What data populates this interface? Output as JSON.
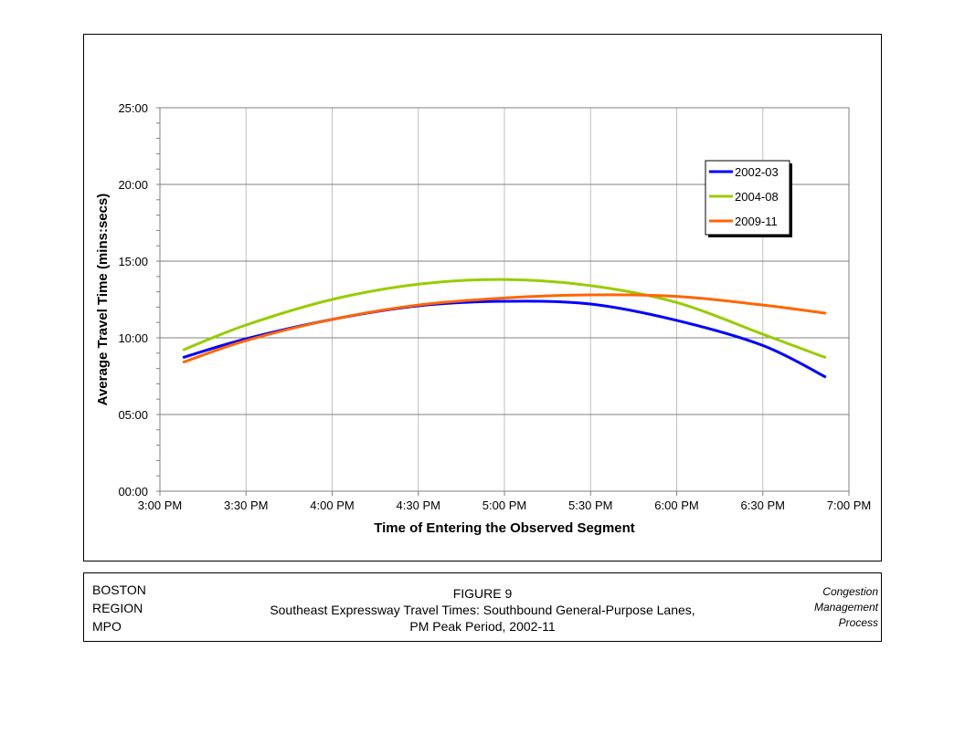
{
  "chart_data": {
    "type": "line",
    "xlabel": "Time of Entering the Observed Segment",
    "ylabel": "Average Travel Time (mins:secs)",
    "xlim": [
      "3:00 PM",
      "7:00 PM"
    ],
    "ylim": [
      "00:00",
      "25:00"
    ],
    "x_ticks": [
      "3:00 PM",
      "3:30 PM",
      "4:00 PM",
      "4:30 PM",
      "5:00 PM",
      "5:30 PM",
      "6:00 PM",
      "6:30 PM",
      "7:00 PM"
    ],
    "y_ticks": [
      "00:00",
      "05:00",
      "10:00",
      "15:00",
      "20:00",
      "25:00"
    ],
    "grid": true,
    "legend_position": "top-right",
    "x": [
      "3:08 PM",
      "3:30 PM",
      "4:00 PM",
      "4:30 PM",
      "5:00 PM",
      "5:30 PM",
      "6:00 PM",
      "6:30 PM",
      "6:52 PM"
    ],
    "series": [
      {
        "name": "2002-03",
        "color": "#0000ff",
        "values": [
          "08:43",
          "09:56",
          "11:12",
          "12:05",
          "12:23",
          "12:12",
          "11:08",
          "09:30",
          "07:26"
        ]
      },
      {
        "name": "2004-08",
        "color": "#99cc00",
        "values": [
          "09:12",
          "10:50",
          "12:30",
          "13:30",
          "13:48",
          "13:24",
          "12:18",
          "10:14",
          "08:42"
        ]
      },
      {
        "name": "2009-11",
        "color": "#ff6600",
        "values": [
          "08:24",
          "09:49",
          "11:12",
          "12:08",
          "12:36",
          "12:48",
          "12:42",
          "12:08",
          "11:36"
        ]
      }
    ]
  },
  "footer": {
    "org": [
      "BOSTON",
      "REGION",
      "MPO"
    ],
    "figure": "FIGURE  9",
    "caption1": "Southeast Expressway Travel Times: Southbound  General-Purpose Lanes,",
    "caption2": "PM  Peak Period, 2002-11",
    "process": [
      "Congestion",
      "Management",
      "Process"
    ]
  }
}
